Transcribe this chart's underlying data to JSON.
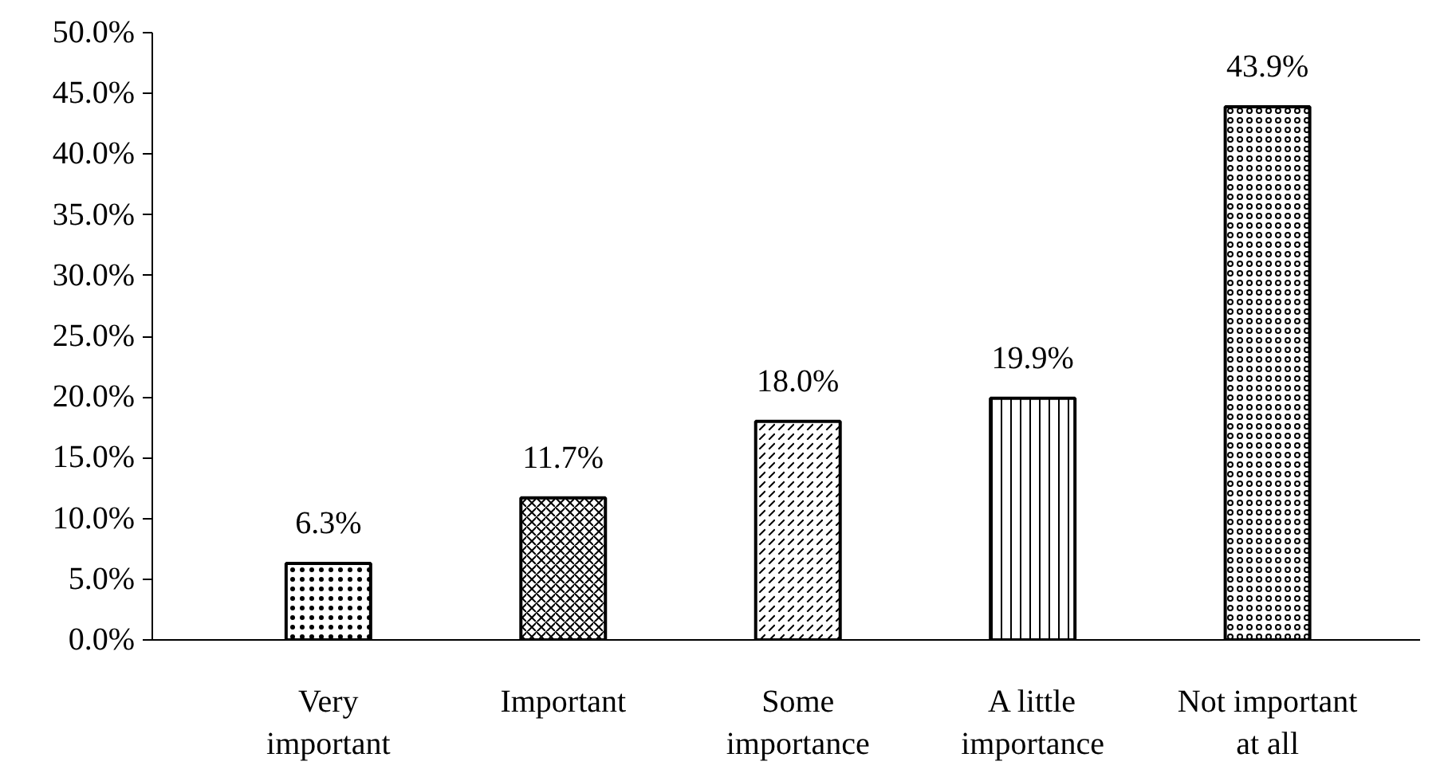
{
  "chart_data": {
    "type": "bar",
    "categories": [
      "Very important",
      "Important",
      "Some importance",
      "A little importance",
      "Not important at all"
    ],
    "values": [
      6.3,
      11.7,
      18.0,
      19.9,
      43.9
    ],
    "value_labels": [
      "6.3%",
      "11.7%",
      "18.0%",
      "19.9%",
      "43.9%"
    ],
    "color": "#000000",
    "ylim": [
      0,
      50
    ],
    "yticks": [
      {
        "value": 0,
        "label": "0.0%"
      },
      {
        "value": 5,
        "label": "5.0%"
      },
      {
        "value": 10,
        "label": "10.0%"
      },
      {
        "value": 15,
        "label": "15.0%"
      },
      {
        "value": 20,
        "label": "20.0%"
      },
      {
        "value": 25,
        "label": "25.0%"
      },
      {
        "value": 30,
        "label": "30.0%"
      },
      {
        "value": 35,
        "label": "35.0%"
      },
      {
        "value": 40,
        "label": "40.0%"
      },
      {
        "value": 45,
        "label": "45.0%"
      },
      {
        "value": 50,
        "label": "50.0%"
      }
    ],
    "grid": false
  }
}
